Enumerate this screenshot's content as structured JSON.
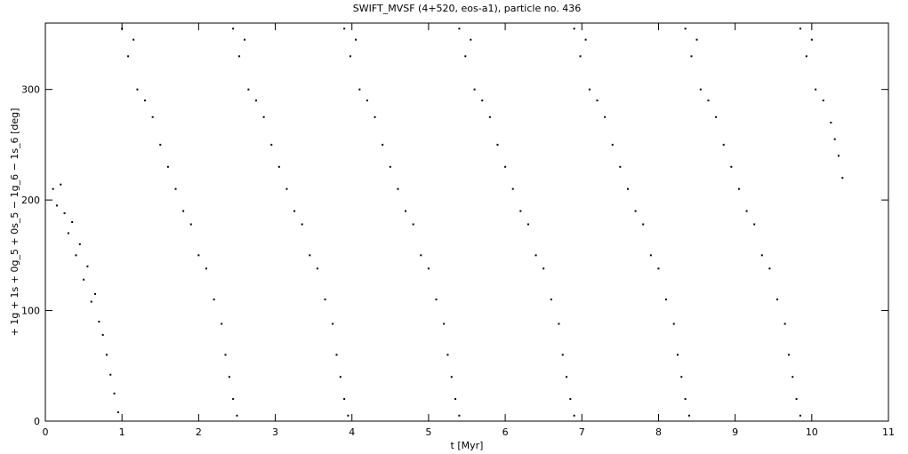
{
  "chart_data": {
    "type": "scatter",
    "title": "SWIFT_MVSF (4+520, eos-a1), particle no. 436",
    "x_label": "t [Myr]",
    "y_label": "+ 1g + 1s + 0g_5 + 0s_5 − 1g_6 − 1s_6 [deg]",
    "xlim": [
      0,
      11
    ],
    "ylim": [
      0,
      360
    ],
    "xticks": [
      0,
      1,
      2,
      3,
      4,
      5,
      6,
      7,
      8,
      9,
      10,
      11
    ],
    "yticks": [
      0,
      100,
      200,
      300
    ],
    "series": [
      {
        "color": "#000000",
        "x": [
          0.1,
          0.15,
          0.2,
          0.25,
          0.3,
          0.35,
          0.4,
          0.45,
          0.5,
          0.55,
          0.6,
          0.65,
          0.7,
          0.75,
          0.8,
          0.85,
          0.9,
          0.95,
          1.0,
          1.08,
          1.15,
          1.2,
          1.3,
          1.4,
          1.5,
          1.6,
          1.7,
          1.8,
          1.9,
          2.0,
          2.1,
          2.2,
          2.3,
          2.35,
          2.4,
          2.45,
          2.5,
          2.45,
          2.53,
          2.6,
          2.65,
          2.75,
          2.85,
          2.95,
          3.05,
          3.15,
          3.25,
          3.35,
          3.45,
          3.55,
          3.65,
          3.75,
          3.8,
          3.85,
          3.9,
          3.95,
          3.9,
          3.98,
          4.05,
          4.1,
          4.2,
          4.3,
          4.4,
          4.5,
          4.6,
          4.7,
          4.8,
          4.9,
          5.0,
          5.1,
          5.2,
          5.25,
          5.3,
          5.35,
          5.4,
          5.4,
          5.48,
          5.55,
          5.6,
          5.7,
          5.8,
          5.9,
          6.0,
          6.1,
          6.2,
          6.3,
          6.4,
          6.5,
          6.6,
          6.7,
          6.75,
          6.8,
          6.85,
          6.9,
          6.9,
          6.98,
          7.05,
          7.1,
          7.2,
          7.3,
          7.4,
          7.5,
          7.6,
          7.7,
          7.8,
          7.9,
          8.0,
          8.1,
          8.2,
          8.25,
          8.3,
          8.35,
          8.4,
          8.35,
          8.43,
          8.5,
          8.55,
          8.65,
          8.75,
          8.85,
          8.95,
          9.05,
          9.15,
          9.25,
          9.35,
          9.45,
          9.55,
          9.65,
          9.7,
          9.75,
          9.8,
          9.85,
          9.85,
          9.93,
          10.0,
          10.05,
          10.15,
          10.25,
          10.3,
          10.35,
          10.4
        ],
        "values": [
          210,
          195,
          214,
          188,
          170,
          180,
          150,
          160,
          128,
          140,
          108,
          115,
          90,
          78,
          60,
          42,
          25,
          8,
          355,
          330,
          345,
          300,
          290,
          275,
          250,
          230,
          210,
          190,
          178,
          150,
          138,
          110,
          88,
          60,
          40,
          20,
          5,
          355,
          330,
          345,
          300,
          290,
          275,
          250,
          230,
          210,
          190,
          178,
          150,
          138,
          110,
          88,
          60,
          40,
          20,
          5,
          355,
          330,
          345,
          300,
          290,
          275,
          250,
          230,
          210,
          190,
          178,
          150,
          138,
          110,
          88,
          60,
          40,
          20,
          5,
          355,
          330,
          345,
          300,
          290,
          275,
          250,
          230,
          210,
          190,
          178,
          150,
          138,
          110,
          88,
          60,
          40,
          20,
          5,
          355,
          330,
          345,
          300,
          290,
          275,
          250,
          230,
          210,
          190,
          178,
          150,
          138,
          110,
          88,
          60,
          40,
          20,
          5,
          355,
          330,
          345,
          300,
          290,
          275,
          250,
          230,
          210,
          190,
          178,
          150,
          138,
          110,
          88,
          60,
          40,
          20,
          5,
          355,
          330,
          345,
          300,
          290,
          270,
          255,
          240,
          220
        ]
      }
    ]
  }
}
